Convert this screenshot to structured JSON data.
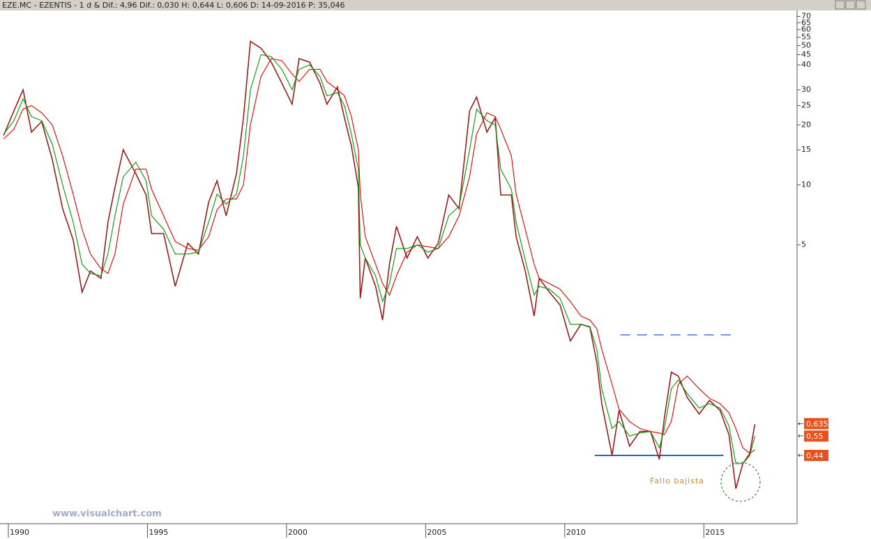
{
  "chart_data": {
    "type": "line",
    "title": "EZE.MC - EZENTIS -   1 d & Dif.: 4,96 Dif.: 0,030 H: 0,644 L: 0,606 D: 14-09-2016 P: 35,046",
    "watermark": "www.visualchart.com",
    "annotation": "Fallo bajista",
    "log_scale": true,
    "xlim": [
      1989.65,
      2018.3
    ],
    "xticks": [
      1990,
      1995,
      2000,
      2005,
      2010,
      2015
    ],
    "ylim": [
      0.2,
      75
    ],
    "yticks": [
      70,
      65,
      60,
      55,
      50,
      45,
      40,
      30,
      25,
      20,
      15,
      10,
      5
    ],
    "x": [
      1989.78,
      1990.15,
      1990.48,
      1990.78,
      1991.15,
      1991.53,
      1991.9,
      1992.28,
      1992.6,
      1992.9,
      1993.28,
      1993.53,
      1993.78,
      1994.08,
      1994.53,
      1994.9,
      1995.1,
      1995.53,
      1995.95,
      1996.4,
      1996.78,
      1997.15,
      1997.45,
      1997.78,
      1998.15,
      1998.4,
      1998.65,
      1999.03,
      1999.4,
      1999.78,
      2000.15,
      2000.4,
      2000.78,
      2001.15,
      2001.4,
      2001.78,
      2002.03,
      2002.28,
      2002.53,
      2002.6,
      2002.78,
      2003.15,
      2003.4,
      2003.65,
      2003.9,
      2004.28,
      2004.65,
      2005.03,
      2005.4,
      2005.78,
      2006.15,
      2006.53,
      2006.78,
      2007.15,
      2007.45,
      2007.65,
      2008.03,
      2008.2,
      2008.53,
      2008.85,
      2009.03,
      2009.4,
      2009.78,
      2010.15,
      2010.53,
      2010.85,
      2011.1,
      2011.28,
      2011.65,
      2011.9,
      2012.28,
      2012.65,
      2013.03,
      2013.35,
      2013.53,
      2013.78,
      2014.03,
      2014.35,
      2014.78,
      2015.15,
      2015.53,
      2015.85,
      2016.1,
      2016.35,
      2016.6,
      2016.78
    ],
    "series": [
      {
        "color": "#9a1c1c",
        "values": [
          17.7,
          23.5,
          30,
          18.4,
          20.8,
          13.4,
          7.6,
          5.3,
          2.9,
          3.7,
          3.4,
          6.5,
          9.7,
          15,
          11.4,
          8.9,
          5.7,
          5.7,
          3.1,
          5.1,
          4.5,
          8.2,
          10.5,
          7.0,
          11.4,
          21.7,
          52.5,
          48.5,
          41.3,
          32.4,
          25.4,
          43,
          41.3,
          32.4,
          25.4,
          31,
          21.7,
          15.7,
          9.7,
          2.7,
          4.3,
          3.1,
          2.1,
          4.0,
          6.2,
          4.3,
          5.5,
          4.3,
          5.1,
          8.9,
          7.6,
          23.5,
          27.6,
          18.4,
          21.7,
          8.9,
          8.9,
          5.5,
          3.7,
          2.2,
          3.4,
          2.9,
          2.5,
          1.65,
          2.0,
          1.94,
          1.29,
          0.8,
          0.44,
          0.74,
          0.49,
          0.58,
          0.58,
          0.42,
          0.68,
          1.15,
          1.1,
          0.86,
          0.71,
          0.83,
          0.74,
          0.56,
          0.3,
          0.4,
          0.45,
          0.63
        ]
      },
      {
        "color": "#e00000",
        "values": [
          17,
          19,
          24,
          25,
          23,
          20,
          14,
          9,
          6,
          4.5,
          3.8,
          3.6,
          4.5,
          8,
          12,
          12,
          9.5,
          7,
          5.2,
          4.8,
          4.7,
          5.5,
          7.5,
          8.5,
          8.5,
          10,
          20,
          35,
          43,
          42,
          36,
          33,
          38,
          38,
          33,
          30,
          28,
          22,
          15,
          9,
          5.5,
          4,
          3.2,
          2.8,
          3.5,
          4.6,
          5,
          4.9,
          4.8,
          5.5,
          7,
          11,
          18,
          23,
          22,
          19,
          14,
          9,
          6,
          4,
          3.4,
          3.2,
          3,
          2.6,
          2.2,
          2.1,
          1.9,
          1.5,
          1.0,
          0.75,
          0.65,
          0.6,
          0.58,
          0.57,
          0.56,
          0.65,
          1.0,
          1.1,
          0.95,
          0.85,
          0.8,
          0.72,
          0.6,
          0.48,
          0.45,
          0.47
        ]
      },
      {
        "color": "#009a00",
        "values": [
          18,
          21,
          27,
          22,
          21,
          16,
          10,
          6.5,
          4,
          3.6,
          3.5,
          4.5,
          7,
          11,
          13,
          10.5,
          7,
          6,
          4.5,
          4.5,
          4.6,
          6.5,
          9,
          8,
          9,
          14,
          30,
          45,
          44,
          38,
          30,
          38,
          40,
          35,
          28,
          29,
          25,
          18,
          12,
          5,
          4.3,
          3.5,
          2.6,
          3.2,
          4.8,
          4.8,
          5,
          4.6,
          4.8,
          7,
          7.8,
          15,
          24,
          21,
          20,
          12,
          9.5,
          6.5,
          4.2,
          2.8,
          3.1,
          3,
          2.7,
          2,
          2,
          1.95,
          1.5,
          0.95,
          0.6,
          0.65,
          0.55,
          0.57,
          0.58,
          0.48,
          0.6,
          0.95,
          1.05,
          0.9,
          0.76,
          0.8,
          0.76,
          0.62,
          0.4,
          0.4,
          0.44,
          0.55
        ]
      }
    ],
    "levels": [
      {
        "value": 1.77,
        "x": [
          2011.95,
          2016.03
        ],
        "style": "dashed",
        "color": "#1f5fbf"
      },
      {
        "value": 0.44,
        "x": [
          2011.03,
          2015.65
        ],
        "style": "solid",
        "color": "#1f66cc"
      }
    ],
    "price_tags": [
      {
        "value": 0.635,
        "label": "0,635"
      },
      {
        "value": 0.55,
        "label": "0,55"
      },
      {
        "value": 0.44,
        "label": "0,44"
      }
    ],
    "tag_color": "#e8501e"
  }
}
